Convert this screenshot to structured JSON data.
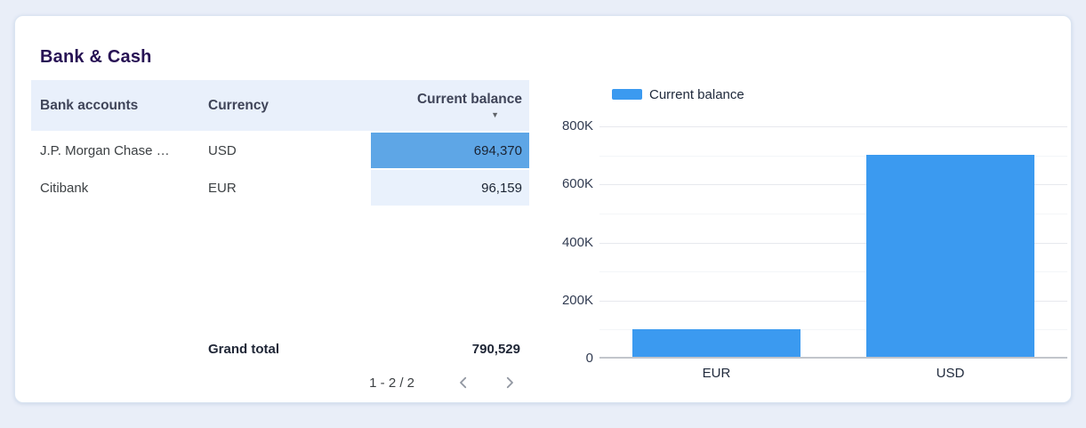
{
  "card": {
    "title": "Bank & Cash"
  },
  "table": {
    "columns": [
      {
        "label": "Bank accounts"
      },
      {
        "label": "Currency"
      },
      {
        "label": "Current balance",
        "sort": "desc"
      }
    ],
    "rows": [
      {
        "account": "J.P. Morgan Chase …",
        "currency": "USD",
        "balance": "694,370",
        "heat_color": "#5ea6e6"
      },
      {
        "account": "Citibank",
        "currency": "EUR",
        "balance": "96,159",
        "heat_color": "#e9f1fc"
      }
    ],
    "grand_total": {
      "label": "Grand total",
      "value": "790,529"
    },
    "pagination": {
      "range": "1 - 2 / 2"
    }
  },
  "chart_data": {
    "type": "bar",
    "title": "",
    "categories": [
      "EUR",
      "USD"
    ],
    "series": [
      {
        "name": "Current balance",
        "values": [
          96159,
          694370
        ]
      }
    ],
    "xlabel": "",
    "ylabel": "",
    "ylim": [
      0,
      800000
    ],
    "ytick_step": 200000,
    "minor_step": 100000,
    "ytick_labels": [
      "0",
      "200K",
      "400K",
      "600K",
      "800K"
    ],
    "legend_position": "top",
    "grid": true,
    "bar_color": "#3b9af0"
  },
  "colors": {
    "page_background": "#e9eef8",
    "card_background": "#ffffff",
    "table_header_background": "#e9f0fb",
    "heatmap_strong": "#5ea6e6",
    "heatmap_light": "#e9f1fc",
    "bar_blue": "#3b9af0",
    "title_text": "#271254"
  }
}
